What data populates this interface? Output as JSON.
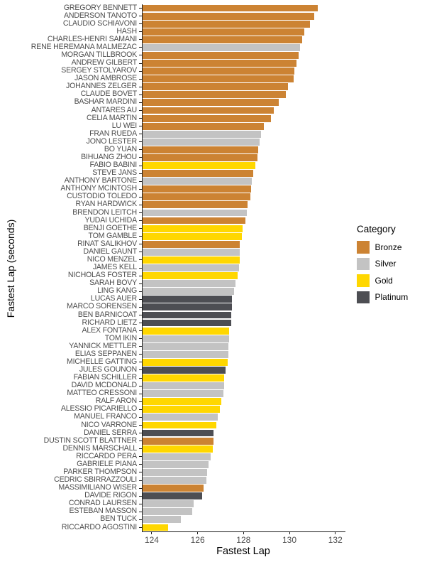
{
  "chart_data": {
    "type": "bar",
    "orientation": "horizontal",
    "title": "",
    "xlabel": "Fastest Lap",
    "ylabel": "Fastest Lap (seconds)",
    "xlim": [
      123.57,
      132.41
    ],
    "x_ticks": [
      "124",
      "126",
      "128",
      "130",
      "132"
    ],
    "grid": false,
    "legend": {
      "title": "Category",
      "position": "right",
      "items": [
        {
          "label": "Bronze",
          "color": "#CC8333"
        },
        {
          "label": "Silver",
          "color": "#C3C3C3"
        },
        {
          "label": "Gold",
          "color": "#FFD700"
        },
        {
          "label": "Platinum",
          "color": "#4D4E53"
        }
      ]
    },
    "drivers": [
      {
        "name": "GREGORY BENNETT",
        "category": "Bronze",
        "fastest_lap": 131.25
      },
      {
        "name": "ANDERSON TANOTO",
        "category": "Bronze",
        "fastest_lap": 131.08
      },
      {
        "name": "CLAUDIO SCHIAVONI",
        "category": "Bronze",
        "fastest_lap": 130.9
      },
      {
        "name": "HASH",
        "category": "Bronze",
        "fastest_lap": 130.64
      },
      {
        "name": "CHARLES-HENRI SAMANI",
        "category": "Bronze",
        "fastest_lap": 130.56
      },
      {
        "name": "RENE HEREMANA MALMEZAC",
        "category": "Silver",
        "fastest_lap": 130.46
      },
      {
        "name": "MORGAN TILLBROOK",
        "category": "Bronze",
        "fastest_lap": 130.4
      },
      {
        "name": "ANDREW GILBERT",
        "category": "Bronze",
        "fastest_lap": 130.31
      },
      {
        "name": "SERGEY STOLYAROV",
        "category": "Bronze",
        "fastest_lap": 130.23
      },
      {
        "name": "JASON AMBROSE",
        "category": "Bronze",
        "fastest_lap": 130.17
      },
      {
        "name": "JOHANNES ZELGER",
        "category": "Bronze",
        "fastest_lap": 129.95
      },
      {
        "name": "CLAUDE BOVET",
        "category": "Bronze",
        "fastest_lap": 129.85
      },
      {
        "name": "BASHAR MARDINI",
        "category": "Bronze",
        "fastest_lap": 129.55
      },
      {
        "name": "ANTARES AU",
        "category": "Bronze",
        "fastest_lap": 129.32
      },
      {
        "name": "CELIA MARTIN",
        "category": "Bronze",
        "fastest_lap": 129.2
      },
      {
        "name": "LU WEI",
        "category": "Bronze",
        "fastest_lap": 128.89
      },
      {
        "name": "FRAN RUEDA",
        "category": "Silver",
        "fastest_lap": 128.77
      },
      {
        "name": "JONO LESTER",
        "category": "Silver",
        "fastest_lap": 128.71
      },
      {
        "name": "BO YUAN",
        "category": "Bronze",
        "fastest_lap": 128.65
      },
      {
        "name": "BIHUANG ZHOU",
        "category": "Bronze",
        "fastest_lap": 128.62
      },
      {
        "name": "FABIO BABINI",
        "category": "Gold",
        "fastest_lap": 128.53
      },
      {
        "name": "STEVE JANS",
        "category": "Bronze",
        "fastest_lap": 128.43
      },
      {
        "name": "ANTHONY BARTONE",
        "category": "Silver",
        "fastest_lap": 128.37
      },
      {
        "name": "ANTHONY MCINTOSH",
        "category": "Bronze",
        "fastest_lap": 128.33
      },
      {
        "name": "CUSTODIO TOLEDO",
        "category": "Bronze",
        "fastest_lap": 128.3
      },
      {
        "name": "RYAN HARDWICK",
        "category": "Bronze",
        "fastest_lap": 128.18
      },
      {
        "name": "BRENDON LEITCH",
        "category": "Silver",
        "fastest_lap": 128.15
      },
      {
        "name": "YUDAI UCHIDA",
        "category": "Bronze",
        "fastest_lap": 128.07
      },
      {
        "name": "BENJI GOETHE",
        "category": "Gold",
        "fastest_lap": 127.97
      },
      {
        "name": "TOM GAMBLE",
        "category": "Gold",
        "fastest_lap": 127.94
      },
      {
        "name": "RINAT SALIKHOV",
        "category": "Bronze",
        "fastest_lap": 127.85
      },
      {
        "name": "DANIEL GAUNT",
        "category": "Silver",
        "fastest_lap": 127.84
      },
      {
        "name": "NICO MENZEL",
        "category": "Gold",
        "fastest_lap": 127.82
      },
      {
        "name": "JAMES KELL",
        "category": "Silver",
        "fastest_lap": 127.79
      },
      {
        "name": "NICHOLAS FOSTER",
        "category": "Gold",
        "fastest_lap": 127.75
      },
      {
        "name": "SARAH BOVY",
        "category": "Silver",
        "fastest_lap": 127.65
      },
      {
        "name": "LING KANG",
        "category": "Silver",
        "fastest_lap": 127.59
      },
      {
        "name": "LUCAS AUER",
        "category": "Platinum",
        "fastest_lap": 127.5
      },
      {
        "name": "MARCO SORENSEN",
        "category": "Platinum",
        "fastest_lap": 127.49
      },
      {
        "name": "BEN BARNICOAT",
        "category": "Platinum",
        "fastest_lap": 127.47
      },
      {
        "name": "RICHARD LIETZ",
        "category": "Platinum",
        "fastest_lap": 127.45
      },
      {
        "name": "ALEX FONTANA",
        "category": "Gold",
        "fastest_lap": 127.38
      },
      {
        "name": "TOM IKIN",
        "category": "Silver",
        "fastest_lap": 127.37
      },
      {
        "name": "YANNICK METTLER",
        "category": "Silver",
        "fastest_lap": 127.35
      },
      {
        "name": "ELIAS SEPPANEN",
        "category": "Silver",
        "fastest_lap": 127.34
      },
      {
        "name": "MICHELLE GATTING",
        "category": "Gold",
        "fastest_lap": 127.32
      },
      {
        "name": "JULES GOUNON",
        "category": "Platinum",
        "fastest_lap": 127.22
      },
      {
        "name": "FABIAN SCHILLER",
        "category": "Gold",
        "fastest_lap": 127.17
      },
      {
        "name": "DAVID MCDONALD",
        "category": "Silver",
        "fastest_lap": 127.14
      },
      {
        "name": "MATTEO CRESSONI",
        "category": "Silver",
        "fastest_lap": 127.13
      },
      {
        "name": "RALF ARON",
        "category": "Gold",
        "fastest_lap": 127.04
      },
      {
        "name": "ALESSIO PICARIELLO",
        "category": "Gold",
        "fastest_lap": 126.98
      },
      {
        "name": "MANUEL FRANCO",
        "category": "Silver",
        "fastest_lap": 126.88
      },
      {
        "name": "NICO VARRONE",
        "category": "Gold",
        "fastest_lap": 126.82
      },
      {
        "name": "DANIEL SERRA",
        "category": "Platinum",
        "fastest_lap": 126.69
      },
      {
        "name": "DUSTIN SCOTT BLATTNER",
        "category": "Bronze",
        "fastest_lap": 126.68
      },
      {
        "name": "DENNIS MARSCHALL",
        "category": "Gold",
        "fastest_lap": 126.67
      },
      {
        "name": "RICCARDO PERA",
        "category": "Silver",
        "fastest_lap": 126.58
      },
      {
        "name": "GABRIELE PIANA",
        "category": "Silver",
        "fastest_lap": 126.46
      },
      {
        "name": "PARKER THOMPSON",
        "category": "Silver",
        "fastest_lap": 126.41
      },
      {
        "name": "CEDRIC SBIRRAZZOULI",
        "category": "Silver",
        "fastest_lap": 126.37
      },
      {
        "name": "MASSIMILIANO WISER",
        "category": "Bronze",
        "fastest_lap": 126.27
      },
      {
        "name": "DAVIDE RIGON",
        "category": "Platinum",
        "fastest_lap": 126.21
      },
      {
        "name": "CONRAD LAURSEN",
        "category": "Silver",
        "fastest_lap": 125.83
      },
      {
        "name": "ESTEBAN MASSON",
        "category": "Silver",
        "fastest_lap": 125.77
      },
      {
        "name": "BEN TUCK",
        "category": "Silver",
        "fastest_lap": 125.27
      },
      {
        "name": "RICCARDO AGOSTINI",
        "category": "Gold",
        "fastest_lap": 124.72
      }
    ]
  }
}
